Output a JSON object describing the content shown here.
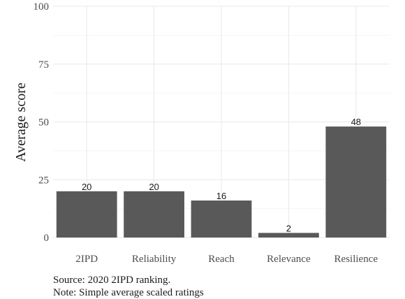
{
  "chart_data": {
    "type": "bar",
    "categories": [
      "2IPD",
      "Reliability",
      "Reach",
      "Relevance",
      "Resilience"
    ],
    "values": [
      20,
      20,
      16,
      2,
      48
    ],
    "data_labels": [
      "20",
      "20",
      "16",
      "2",
      "48"
    ],
    "title": "",
    "xlabel": "",
    "ylabel": "Average score",
    "ylim": [
      0,
      100
    ],
    "yticks": [
      0,
      25,
      50,
      75,
      100
    ],
    "ytick_labels": [
      "0",
      "25",
      "50",
      "75",
      "100"
    ],
    "grid": true,
    "legend": "none",
    "bar_color": "#595959"
  },
  "captions": {
    "source": "Source: 2020 2IPD ranking.",
    "note": "Note: Simple average scaled ratings"
  }
}
